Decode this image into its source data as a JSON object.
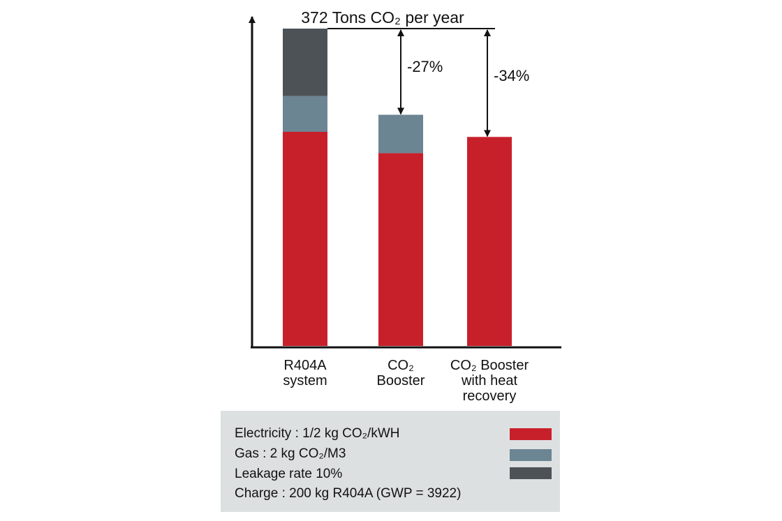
{
  "chart_data": {
    "type": "bar",
    "stacked": true,
    "title": "372 Tons CO₂ per year",
    "categories": [
      "R404A system",
      "CO₂ Booster",
      "CO₂ Booster with heat recovery"
    ],
    "category_lines": [
      [
        "R404A",
        "system"
      ],
      [
        "CO₂",
        "Booster"
      ],
      [
        "CO₂ Booster",
        "with heat",
        "recovery"
      ]
    ],
    "series": [
      {
        "name": "Electricity : 1/2 kg CO₂/kWH",
        "color": "#c8202b",
        "values": [
          251,
          226,
          245
        ]
      },
      {
        "name": "Gas : 2 kg CO₂/M3",
        "color": "#6c8592",
        "values": [
          42,
          45,
          0
        ]
      },
      {
        "name": "Leakage rate 10%",
        "color": "#4d5257",
        "values": [
          79,
          0,
          0
        ]
      }
    ],
    "ylim": [
      0,
      372
    ],
    "annotations": [
      {
        "category_index": 1,
        "label": "-27%",
        "value": 271
      },
      {
        "category_index": 2,
        "label": "-34%",
        "value": 245
      }
    ],
    "grid": false,
    "legend_position": "bottom"
  },
  "legend": {
    "rows": [
      {
        "text": "Electricity : 1/2 kg CO₂/kWH",
        "color": "#c8202b"
      },
      {
        "text": "Gas : 2 kg CO₂/M3",
        "color": "#6c8592"
      },
      {
        "text": "Leakage rate 10%",
        "color": "#4d5257"
      },
      {
        "text": "Charge : 200 kg R404A (GWP = 3922)",
        "color": ""
      }
    ]
  }
}
